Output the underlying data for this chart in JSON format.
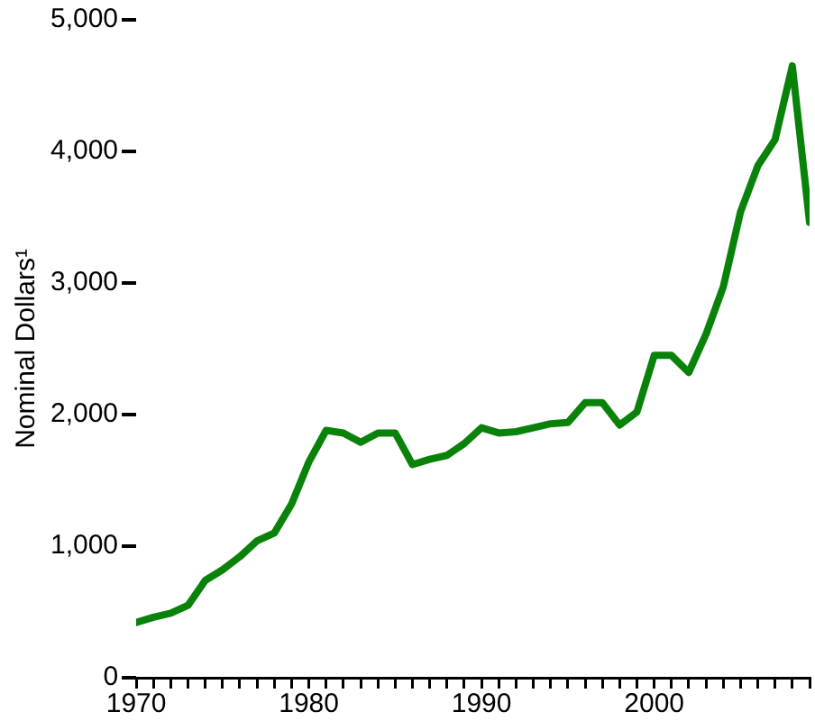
{
  "chart_data": {
    "type": "line",
    "ylabel": "Nominal Dollars¹",
    "x": [
      1970,
      1971,
      1972,
      1973,
      1974,
      1975,
      1976,
      1977,
      1978,
      1979,
      1980,
      1981,
      1982,
      1983,
      1984,
      1985,
      1986,
      1987,
      1988,
      1989,
      1990,
      1991,
      1992,
      1993,
      1994,
      1995,
      1996,
      1997,
      1998,
      1999,
      2000,
      2001,
      2002,
      2003,
      2004,
      2005,
      2006,
      2007,
      2008,
      2009
    ],
    "series": [
      {
        "color": "#098209",
        "values": [
          420,
          460,
          490,
          550,
          740,
          820,
          920,
          1040,
          1100,
          1320,
          1640,
          1880,
          1860,
          1790,
          1860,
          1860,
          1620,
          1660,
          1690,
          1780,
          1900,
          1860,
          1870,
          1900,
          1930,
          1940,
          2090,
          2090,
          1920,
          2020,
          2450,
          2450,
          2320,
          2610,
          2970,
          3540,
          3890,
          4090,
          4650,
          3460
        ]
      }
    ],
    "xlim": [
      1970,
      2009
    ],
    "xticks": [
      1970,
      {
        "value": 1971,
        "label": null
      },
      {
        "value": 1972,
        "label": null
      },
      {
        "value": 1973,
        "label": null
      },
      {
        "value": 1974,
        "label": null
      },
      {
        "value": 1975,
        "label": null
      },
      {
        "value": 1976,
        "label": null
      },
      {
        "value": 1977,
        "label": null
      },
      {
        "value": 1978,
        "label": null
      },
      {
        "value": 1979,
        "label": null
      },
      1980,
      {
        "value": 1981,
        "label": null
      },
      {
        "value": 1982,
        "label": null
      },
      {
        "value": 1983,
        "label": null
      },
      {
        "value": 1984,
        "label": null
      },
      {
        "value": 1985,
        "label": null
      },
      {
        "value": 1986,
        "label": null
      },
      {
        "value": 1987,
        "label": null
      },
      {
        "value": 1988,
        "label": null
      },
      {
        "value": 1989,
        "label": null
      },
      1990,
      {
        "value": 1991,
        "label": null
      },
      {
        "value": 1992,
        "label": null
      },
      {
        "value": 1993,
        "label": null
      },
      {
        "value": 1994,
        "label": null
      },
      {
        "value": 1995,
        "label": null
      },
      {
        "value": 1996,
        "label": null
      },
      {
        "value": 1997,
        "label": null
      },
      {
        "value": 1998,
        "label": null
      },
      {
        "value": 1999,
        "label": null
      },
      2000,
      {
        "value": 2001,
        "label": null
      },
      {
        "value": 2002,
        "label": null
      },
      {
        "value": 2003,
        "label": null
      },
      {
        "value": 2004,
        "label": null
      },
      {
        "value": 2005,
        "label": null
      },
      {
        "value": 2006,
        "label": null
      },
      {
        "value": 2007,
        "label": null
      },
      {
        "value": 2008,
        "label": null
      },
      {
        "value": 2009,
        "label": null
      }
    ],
    "ylim": [
      0,
      5000
    ],
    "yticks": [
      {
        "value": 0,
        "label": "0"
      },
      {
        "value": 1000,
        "label": "1,000"
      },
      {
        "value": 2000,
        "label": "2,000"
      },
      {
        "value": 3000,
        "label": "3,000"
      },
      {
        "value": 4000,
        "label": "4,000"
      },
      {
        "value": 5000,
        "label": "5,000"
      }
    ],
    "grid": false,
    "legend": false,
    "marker": "none",
    "line_style": "solid"
  }
}
